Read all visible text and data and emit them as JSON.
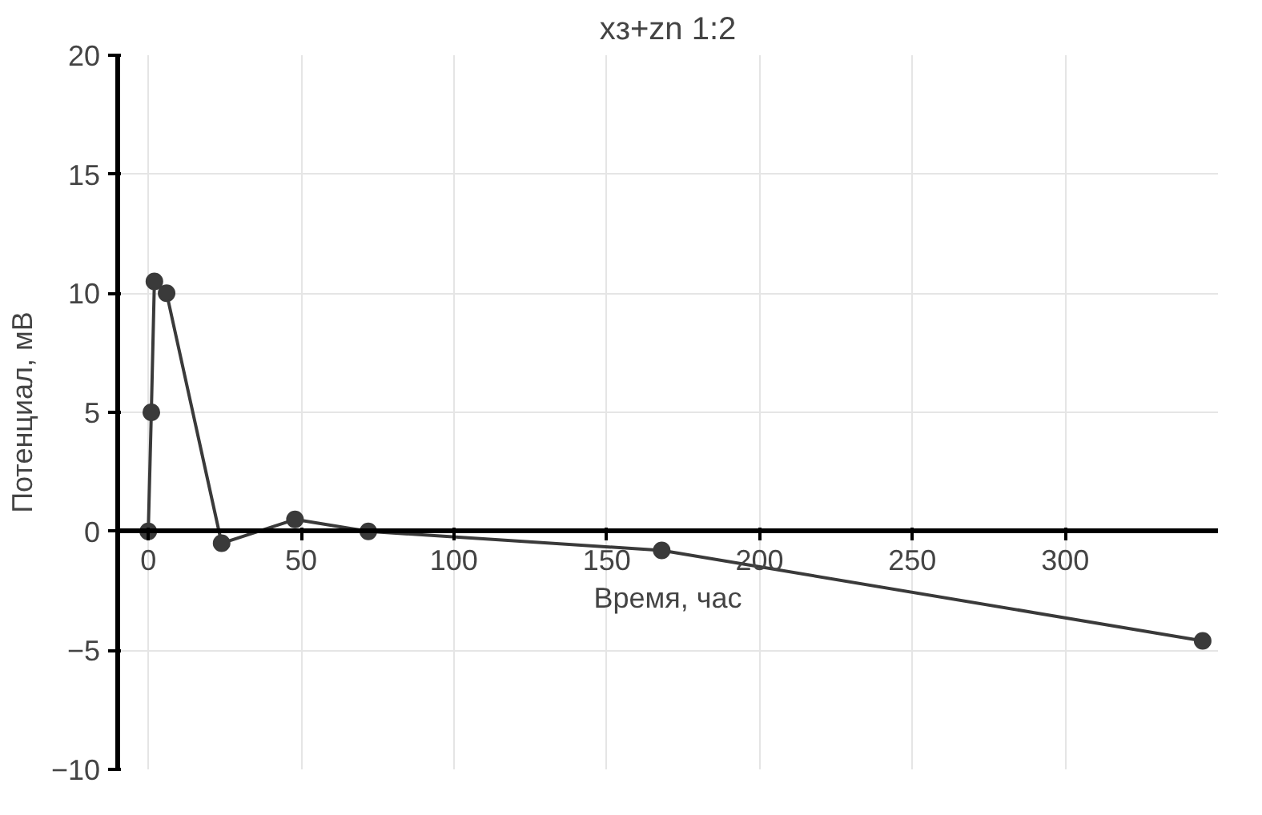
{
  "chart_data": {
    "type": "line",
    "title": "xз+zn 1:2",
    "xlabel": "Время, час",
    "ylabel": "Потенциал, мВ",
    "x": [
      0,
      1,
      2,
      6,
      24,
      48,
      72,
      168,
      345
    ],
    "series": [
      {
        "color": "#3a3a3a",
        "values": [
          0,
          5,
          10.5,
          10,
          -0.5,
          0.5,
          0,
          -0.8,
          -4.6
        ]
      }
    ],
    "xlim": [
      -10,
      350
    ],
    "xticks": [
      0,
      50,
      100,
      150,
      200,
      250,
      300
    ],
    "ylim": [
      -10,
      20
    ],
    "yticks": [
      -10,
      -5,
      0,
      5,
      10,
      15,
      20
    ],
    "grid": true,
    "marker": "circle",
    "line_style": "solid"
  }
}
